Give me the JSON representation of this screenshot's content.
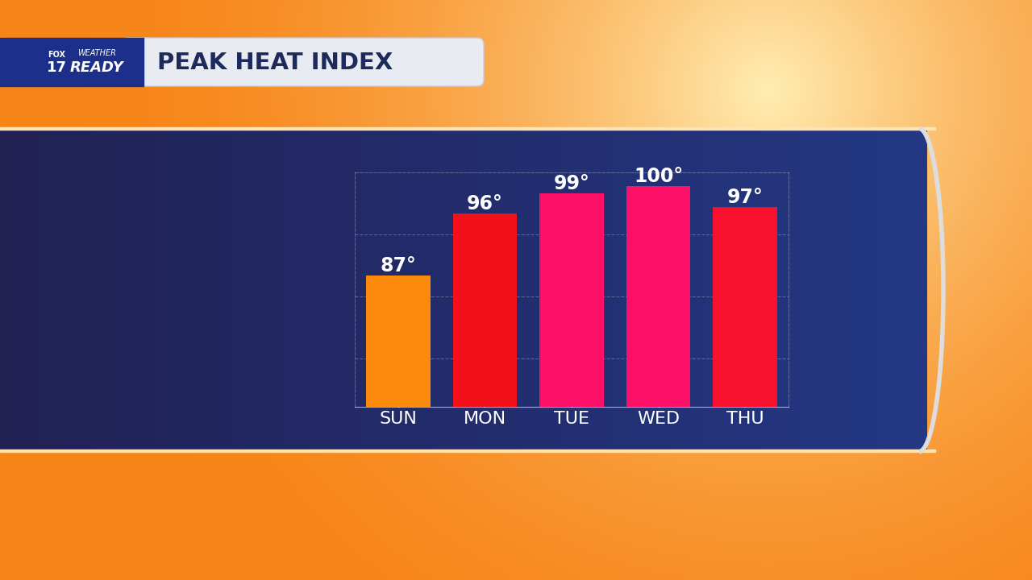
{
  "chart_data": {
    "type": "bar",
    "title": "PEAK HEAT INDEX",
    "annotations": [
      "FOX",
      "17",
      "WEATHER",
      "READY"
    ],
    "categories": [
      "SUN",
      "MON",
      "TUE",
      "WED",
      "THU"
    ],
    "values": [
      87,
      96,
      99,
      100,
      97
    ],
    "value_labels": [
      "87°",
      "96°",
      "99°",
      "100°",
      "97°"
    ],
    "colors": [
      "#fb8a0c",
      "#f2111a",
      "#fc0f66",
      "#fc0f66",
      "#f8102f"
    ],
    "ylim": [
      68,
      102
    ],
    "yticks": [
      75,
      84,
      93
    ],
    "grid": true,
    "data_labels": true,
    "tick_labels": "x"
  }
}
